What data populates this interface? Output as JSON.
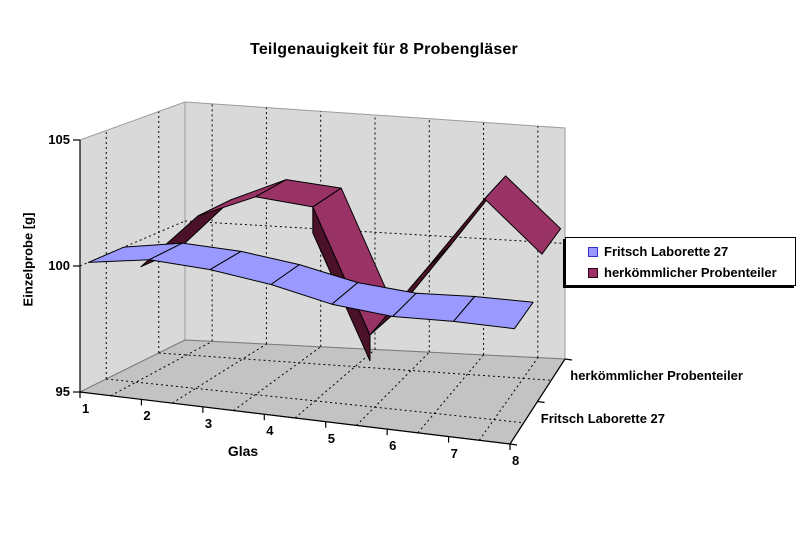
{
  "chart_data": {
    "type": "line",
    "subtype": "3d-ribbon",
    "title": "Teilgenauigkeit für 8 Probengläser",
    "xlabel": "Glas",
    "ylabel": "Einzelprobe [g]",
    "categories": [
      "1",
      "2",
      "3",
      "4",
      "5",
      "6",
      "7",
      "8"
    ],
    "ylim": [
      95,
      105
    ],
    "yticks": [
      "95",
      "100",
      "105"
    ],
    "grid": true,
    "legend_position": "right",
    "series": [
      {
        "name": "Fritsch Laborette 27",
        "color": "#9999FF",
        "dark_color": "#4A4AA8",
        "marker_border": "#3333CC",
        "depth_row": "front",
        "values": [
          100.0,
          100.4,
          100.3,
          100.0,
          99.5,
          99.3,
          99.4,
          99.4
        ]
      },
      {
        "name": "herkömmlicher Probenteiler",
        "color": "#993366",
        "dark_color": "#4A1129",
        "marker_border": "#33001A",
        "depth_row": "back",
        "values": [
          98.9,
          101.2,
          102.2,
          102.0,
          96.9,
          99.9,
          103.0,
          100.9
        ]
      }
    ],
    "colors": {
      "wall": "#D9D9D9",
      "floor": "#C3C3C3",
      "wall_edge": "#9C9C9C",
      "axis": "#000000",
      "gridline": "#000000",
      "background": "#FFFFFF"
    }
  }
}
